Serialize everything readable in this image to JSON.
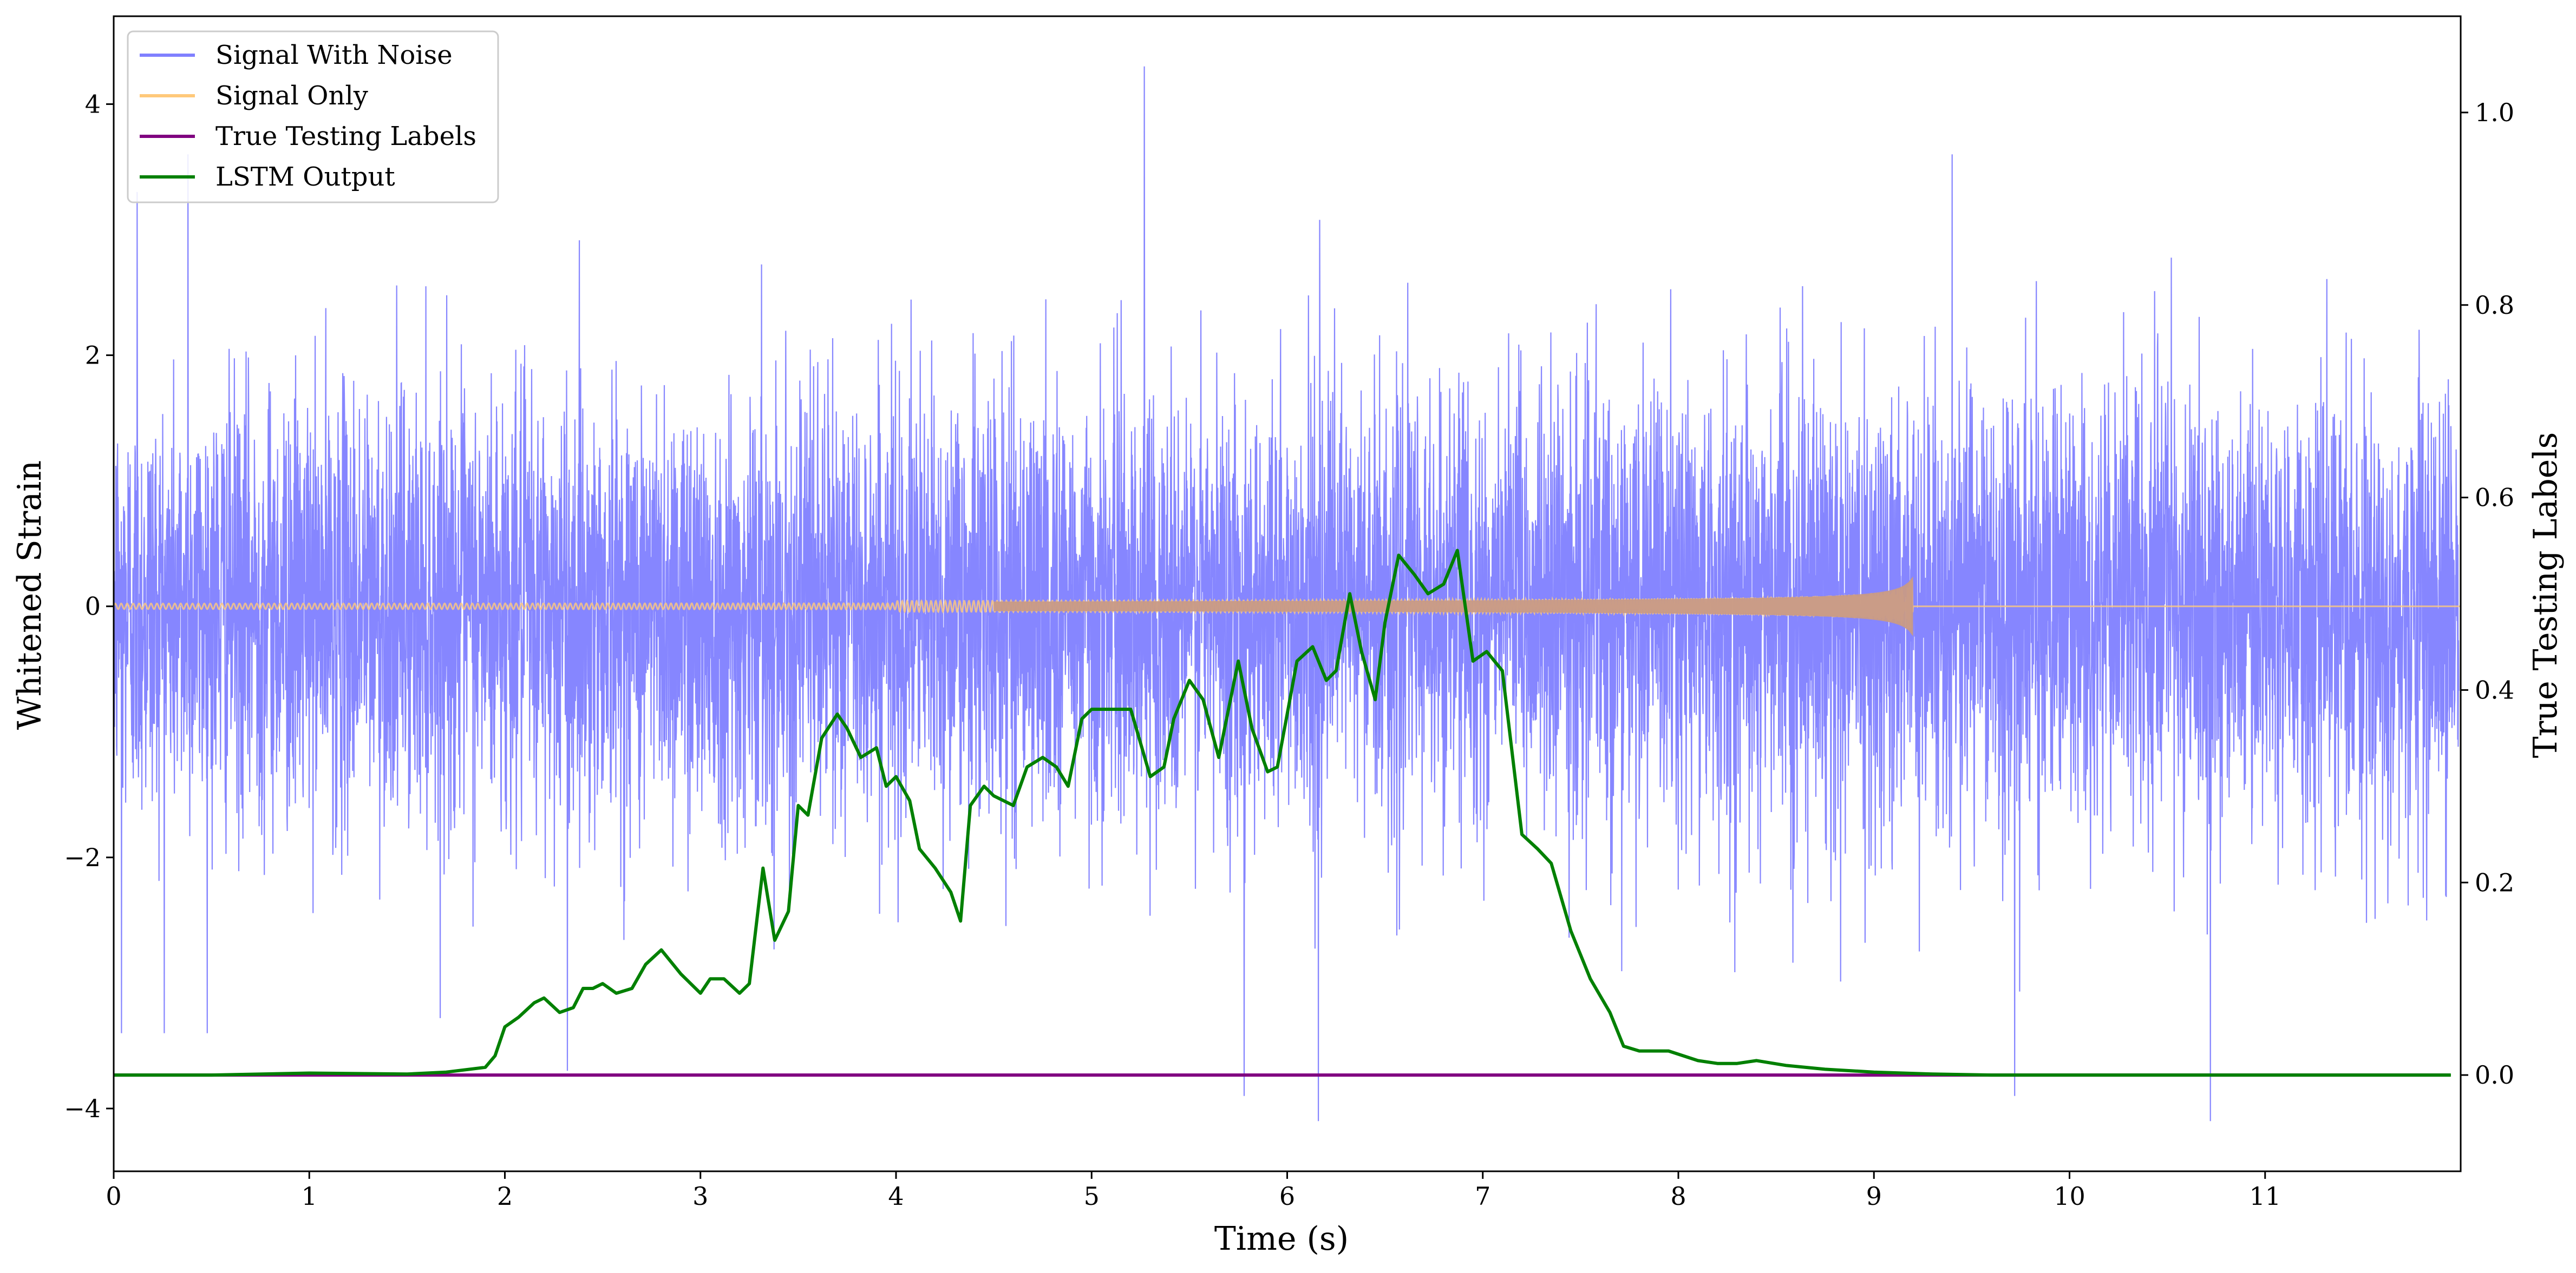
{
  "chart_data": {
    "type": "line",
    "title": "",
    "xlabel": "Time (s)",
    "ylabel": "Whitened Strain",
    "y2label": "True Testing Labels",
    "xlim": [
      0,
      12
    ],
    "ylim": [
      -4.5,
      4.7
    ],
    "y2lim": [
      -0.1,
      1.1
    ],
    "x_ticks": [
      0,
      1,
      2,
      3,
      4,
      5,
      6,
      7,
      8,
      9,
      10,
      11
    ],
    "y_ticks": [
      -4,
      -2,
      0,
      2,
      4
    ],
    "y2_ticks": [
      0.0,
      0.2,
      0.4,
      0.6,
      0.8,
      1.0
    ],
    "x_tick_labels": [
      "0",
      "1",
      "2",
      "3",
      "4",
      "5",
      "6",
      "7",
      "8",
      "9",
      "10",
      "11"
    ],
    "y_tick_labels": [
      "−4",
      "−2",
      "0",
      "2",
      "4"
    ],
    "y2_tick_labels": [
      "0.0",
      "0.2",
      "0.4",
      "0.6",
      "0.8",
      "1.0"
    ],
    "grid": false,
    "legend_position": "top-left",
    "series": [
      {
        "name": "Signal With Noise",
        "axis": "left",
        "color": "#8080ff",
        "description_samples": "dense white-noise strain, |y| mostly < 2, peaks up to ~4.3",
        "peaks": [
          [
            0.04,
            -3.4
          ],
          [
            0.12,
            3.3
          ],
          [
            0.38,
            3.6
          ],
          [
            2.32,
            -3.7
          ],
          [
            5.27,
            4.3
          ],
          [
            5.78,
            -3.9
          ],
          [
            6.16,
            -4.1
          ],
          [
            9.72,
            -3.9
          ],
          [
            10.72,
            -4.1
          ],
          [
            9.4,
            3.6
          ]
        ]
      },
      {
        "name": "Signal Only",
        "axis": "left",
        "color": "#ffc97a",
        "description": "chirp waveform near 0, amplitude growing to ~0.25 at 9.2 s, then zero"
      },
      {
        "name": "True Testing Labels",
        "axis": "right",
        "color": "#800080",
        "x": [
          0,
          12
        ],
        "y": [
          0,
          0
        ]
      },
      {
        "name": "LSTM Output",
        "axis": "right",
        "color": "#008000",
        "x": [
          0.0,
          0.5,
          1.0,
          1.5,
          1.7,
          1.9,
          1.95,
          2.0,
          2.07,
          2.15,
          2.2,
          2.28,
          2.35,
          2.4,
          2.45,
          2.5,
          2.57,
          2.65,
          2.72,
          2.8,
          2.9,
          3.0,
          3.05,
          3.12,
          3.2,
          3.25,
          3.32,
          3.38,
          3.45,
          3.5,
          3.55,
          3.62,
          3.7,
          3.75,
          3.82,
          3.9,
          3.95,
          4.0,
          4.07,
          4.12,
          4.2,
          4.28,
          4.33,
          4.38,
          4.45,
          4.5,
          4.6,
          4.67,
          4.75,
          4.82,
          4.88,
          4.95,
          5.0,
          5.1,
          5.2,
          5.3,
          5.37,
          5.42,
          5.5,
          5.57,
          5.65,
          5.7,
          5.75,
          5.82,
          5.9,
          5.95,
          6.05,
          6.13,
          6.2,
          6.25,
          6.32,
          6.38,
          6.45,
          6.5,
          6.57,
          6.65,
          6.72,
          6.8,
          6.87,
          6.95,
          7.02,
          7.1,
          7.2,
          7.28,
          7.35,
          7.45,
          7.55,
          7.65,
          7.72,
          7.8,
          7.95,
          8.1,
          8.2,
          8.3,
          8.4,
          8.55,
          8.75,
          9.0,
          9.3,
          9.6,
          10.0,
          10.5,
          11.0,
          11.5,
          11.95
        ],
        "y": [
          0.0,
          0.0,
          0.002,
          0.001,
          0.003,
          0.008,
          0.02,
          0.05,
          0.06,
          0.075,
          0.08,
          0.065,
          0.07,
          0.09,
          0.09,
          0.095,
          0.085,
          0.09,
          0.115,
          0.13,
          0.105,
          0.085,
          0.1,
          0.1,
          0.085,
          0.095,
          0.215,
          0.14,
          0.17,
          0.28,
          0.27,
          0.35,
          0.375,
          0.36,
          0.33,
          0.34,
          0.3,
          0.31,
          0.285,
          0.235,
          0.215,
          0.19,
          0.16,
          0.28,
          0.3,
          0.29,
          0.28,
          0.32,
          0.33,
          0.32,
          0.3,
          0.37,
          0.38,
          0.38,
          0.38,
          0.31,
          0.32,
          0.37,
          0.41,
          0.39,
          0.33,
          0.38,
          0.43,
          0.36,
          0.315,
          0.32,
          0.43,
          0.445,
          0.41,
          0.42,
          0.5,
          0.44,
          0.39,
          0.47,
          0.54,
          0.52,
          0.5,
          0.51,
          0.545,
          0.43,
          0.44,
          0.42,
          0.25,
          0.235,
          0.22,
          0.15,
          0.1,
          0.065,
          0.03,
          0.025,
          0.025,
          0.015,
          0.012,
          0.012,
          0.015,
          0.01,
          0.006,
          0.003,
          0.001,
          0.0,
          0.0,
          0.0,
          0.0,
          0.0,
          0.0
        ]
      }
    ],
    "legend": [
      {
        "label": "Signal With Noise",
        "color": "#8080ff"
      },
      {
        "label": "Signal Only",
        "color": "#ffc97a"
      },
      {
        "label": "True Testing Labels",
        "color": "#800080"
      },
      {
        "label": "LSTM Output",
        "color": "#008000"
      }
    ]
  }
}
